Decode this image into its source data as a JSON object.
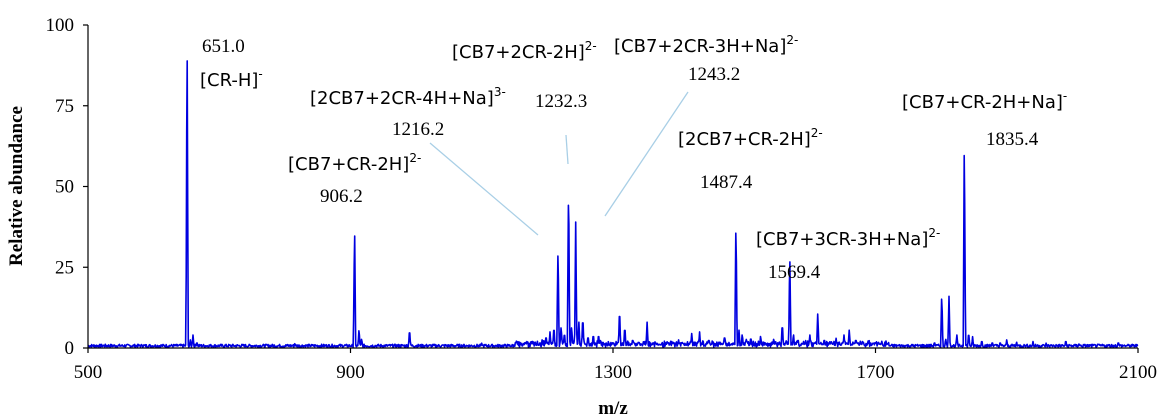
{
  "chart_data": {
    "type": "line",
    "title": "",
    "xlabel": "m/z",
    "ylabel": "Relative abundance",
    "xlim": [
      500,
      2100
    ],
    "ylim": [
      0,
      100
    ],
    "xticks": [
      "500",
      "900",
      "1300",
      "1700",
      "2100"
    ],
    "yticks": [
      "0",
      "25",
      "50",
      "75",
      "100"
    ],
    "grid": false,
    "series": [
      {
        "color": "#0000e0",
        "peaks": [
          [
            582,
            1.0
          ],
          [
            651.0,
            100
          ],
          [
            656,
            2.5
          ],
          [
            660,
            4
          ],
          [
            666,
            2
          ],
          [
            815,
            1.5
          ],
          [
            906.2,
            39
          ],
          [
            913,
            6
          ],
          [
            917,
            3
          ],
          [
            990,
            6
          ],
          [
            1100,
            1.5
          ],
          [
            1160,
            1.5
          ],
          [
            1192,
            2.5
          ],
          [
            1198,
            4
          ],
          [
            1204,
            5
          ],
          [
            1210,
            7
          ],
          [
            1216.2,
            32
          ],
          [
            1221,
            7
          ],
          [
            1226,
            5
          ],
          [
            1232.3,
            53
          ],
          [
            1237,
            7
          ],
          [
            1243.2,
            39
          ],
          [
            1248,
            8
          ],
          [
            1254,
            10
          ],
          [
            1262,
            4
          ],
          [
            1270,
            4.5
          ],
          [
            1278,
            4.5
          ],
          [
            1310,
            12.5
          ],
          [
            1318,
            7
          ],
          [
            1330,
            3
          ],
          [
            1352,
            8
          ],
          [
            1400,
            2.5
          ],
          [
            1420,
            4.5
          ],
          [
            1432,
            5
          ],
          [
            1446,
            3
          ],
          [
            1470,
            4
          ],
          [
            1487.4,
            40
          ],
          [
            1492,
            5.5
          ],
          [
            1497,
            4.5
          ],
          [
            1503,
            3
          ],
          [
            1510,
            3.5
          ],
          [
            1525,
            4
          ],
          [
            1545,
            3
          ],
          [
            1558,
            8
          ],
          [
            1569.4,
            30
          ],
          [
            1575,
            4.5
          ],
          [
            1582,
            3
          ],
          [
            1600,
            4
          ],
          [
            1612,
            10.5
          ],
          [
            1622,
            3
          ],
          [
            1640,
            3
          ],
          [
            1652,
            4
          ],
          [
            1660,
            5.5
          ],
          [
            1670,
            3
          ],
          [
            1680,
            2
          ],
          [
            1790,
            2
          ],
          [
            1801,
            17
          ],
          [
            1807,
            3
          ],
          [
            1812,
            16
          ],
          [
            1824,
            4
          ],
          [
            1835.4,
            67
          ],
          [
            1842,
            5
          ],
          [
            1848,
            3.5
          ],
          [
            1862,
            2.5
          ],
          [
            1878,
            2
          ],
          [
            1890,
            2
          ],
          [
            1900,
            2.5
          ],
          [
            1915,
            2
          ],
          [
            1940,
            2
          ],
          [
            1960,
            1.5
          ],
          [
            1990,
            2.5
          ],
          [
            2010,
            1.5
          ],
          [
            2070,
            2
          ]
        ]
      }
    ],
    "annotations": [
      {
        "base": "651.0",
        "ion": "[CR-H]",
        "charge": "-"
      },
      {
        "base": "906.2",
        "ion": "[CB7+CR-2H]",
        "charge": "2-"
      },
      {
        "base": "1216.2",
        "ion": "[2CB7+2CR-4H+Na]",
        "charge": "3-"
      },
      {
        "base": "1232.3",
        "ion": "[CB7+2CR-2H]",
        "charge": "2-"
      },
      {
        "base": "1243.2",
        "ion": "[CB7+2CR-3H+Na]",
        "charge": "2-"
      },
      {
        "base": "1487.4",
        "ion": "[2CB7+CR-2H]",
        "charge": "2-"
      },
      {
        "base": "1569.4",
        "ion": "[CB7+3CR-3H+Na]",
        "charge": "2-"
      },
      {
        "base": "1835.4",
        "ion": "[CB7+CR-2H+Na]",
        "charge": "-"
      }
    ]
  }
}
